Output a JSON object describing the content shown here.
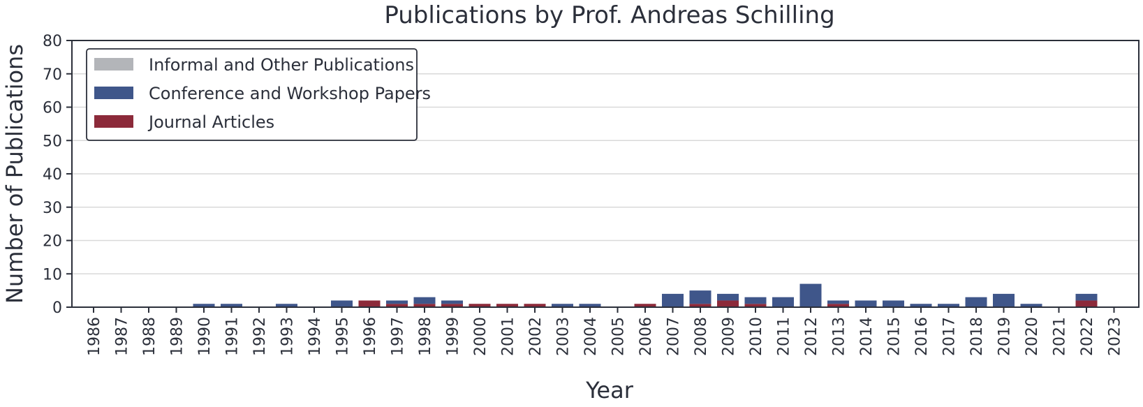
{
  "chart_data": {
    "type": "bar",
    "stacked": true,
    "title": "Publications by Prof. Andreas Schilling",
    "xlabel": "Year",
    "ylabel": "Number of Publications",
    "ylim": [
      0,
      80
    ],
    "yticks": [
      0,
      10,
      20,
      30,
      40,
      50,
      60,
      70,
      80
    ],
    "grid": true,
    "legend_position": "top-left",
    "categories": [
      "1986",
      "1987",
      "1988",
      "1989",
      "1990",
      "1991",
      "1992",
      "1993",
      "1994",
      "1995",
      "1996",
      "1997",
      "1998",
      "1999",
      "2000",
      "2001",
      "2002",
      "2003",
      "2004",
      "2005",
      "2006",
      "2007",
      "2008",
      "2009",
      "2010",
      "2011",
      "2012",
      "2013",
      "2014",
      "2015",
      "2016",
      "2017",
      "2018",
      "2019",
      "2020",
      "2021",
      "2022",
      "2023"
    ],
    "series": [
      {
        "name": "Journal Articles",
        "color": "#8c2a3a",
        "values": [
          0,
          0,
          0,
          0,
          0,
          0,
          0,
          0,
          0,
          0,
          2,
          1,
          1,
          1,
          1,
          1,
          1,
          0,
          0,
          0,
          1,
          0,
          1,
          2,
          1,
          0,
          0,
          1,
          0,
          0,
          0,
          0,
          0,
          0,
          0,
          0,
          2,
          0
        ]
      },
      {
        "name": "Conference and Workshop Papers",
        "color": "#3f568a",
        "values": [
          0,
          0,
          0,
          0,
          1,
          1,
          0,
          1,
          0,
          2,
          0,
          1,
          2,
          1,
          0,
          0,
          0,
          1,
          1,
          0,
          0,
          4,
          4,
          2,
          2,
          3,
          7,
          1,
          2,
          2,
          1,
          1,
          3,
          4,
          1,
          0,
          2,
          0
        ]
      },
      {
        "name": "Informal and Other Publications",
        "color": "#b3b5b9",
        "values": [
          0,
          0,
          0,
          0,
          0,
          0,
          0,
          0,
          0,
          0,
          0,
          0,
          0,
          0,
          0,
          0,
          0,
          0,
          0,
          0,
          0,
          0,
          0,
          0,
          0,
          0,
          0,
          0,
          0,
          0,
          0,
          0,
          0,
          0,
          0,
          0,
          0,
          0
        ]
      }
    ],
    "legend_order": [
      "Informal and Other Publications",
      "Conference and Workshop Papers",
      "Journal Articles"
    ]
  }
}
